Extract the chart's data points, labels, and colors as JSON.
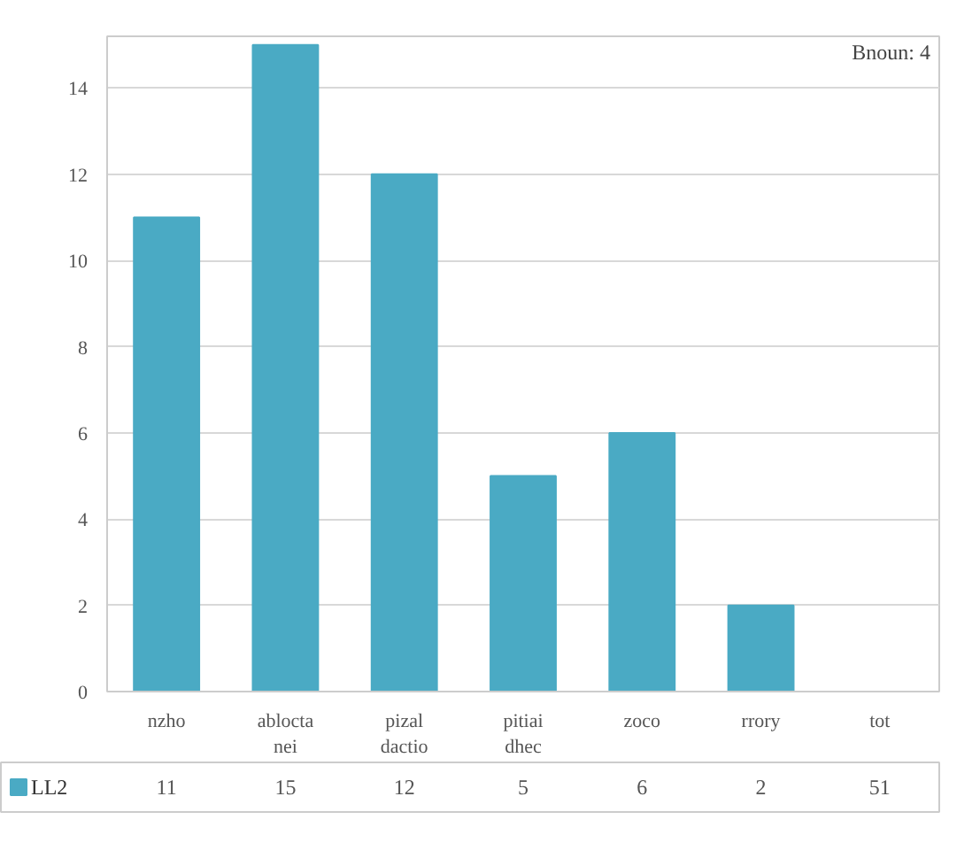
{
  "chart_data": {
    "type": "bar",
    "categories": [
      "nzho",
      "ablocta\nnei",
      "pizal\ndactio",
      "pitiai\ndhec",
      "zoco",
      "rrory",
      "tot"
    ],
    "series": [
      {
        "name": "LL2",
        "color": "#4aaac4",
        "values": [
          11,
          15,
          12,
          5,
          6,
          2,
          null
        ],
        "value_labels": [
          "11",
          "15",
          "12",
          "5",
          "6",
          "2",
          "51"
        ]
      }
    ],
    "ylim": [
      0,
      15.2
    ],
    "yticks": [
      0,
      2,
      4,
      6,
      8,
      10,
      12,
      14
    ],
    "grid": "y",
    "legend": "bottom",
    "annotations": [
      "Bnoun: 4"
    ]
  }
}
